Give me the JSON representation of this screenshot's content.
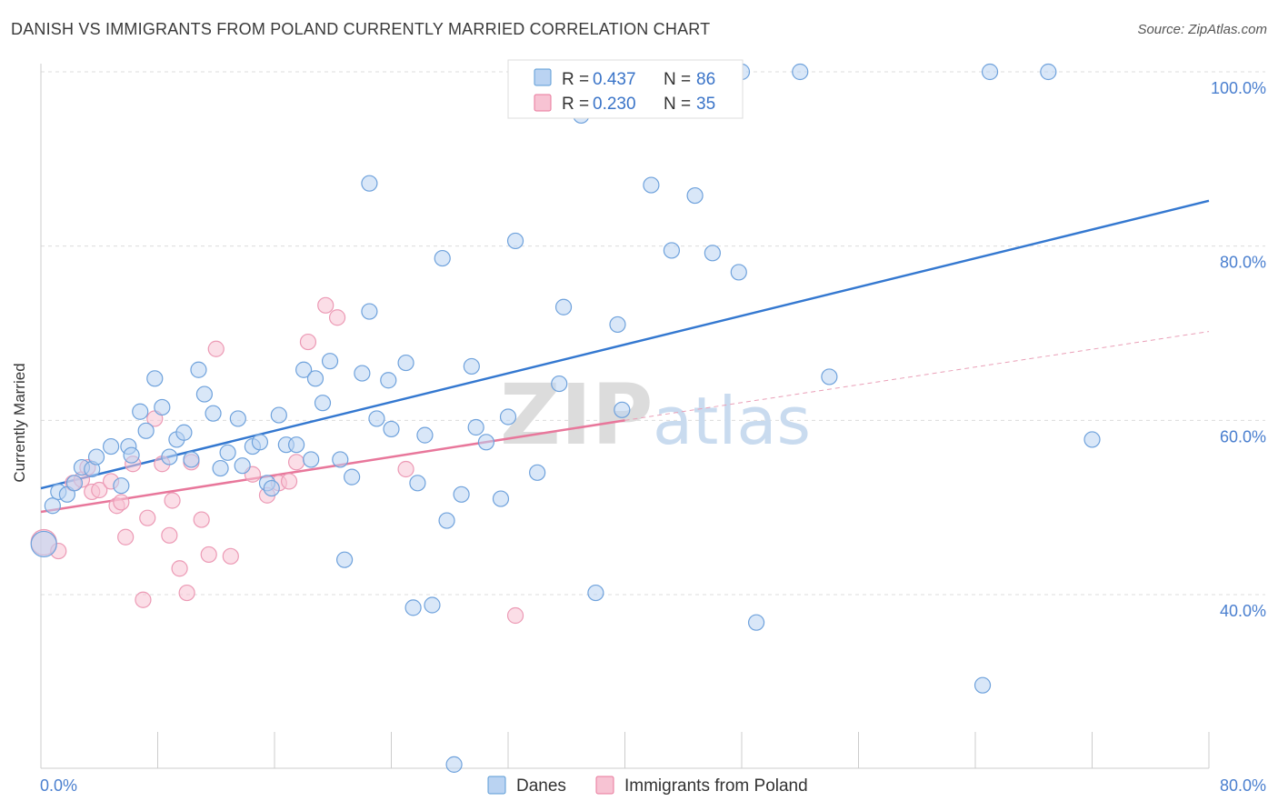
{
  "title": "DANISH VS IMMIGRANTS FROM POLAND CURRENTLY MARRIED CORRELATION CHART",
  "source": "Source: ZipAtlas.com",
  "watermark": {
    "zip": "ZIP",
    "atlas": "atlas"
  },
  "colors": {
    "danes": "#5b9bd5",
    "danes_fill": "#bad3f2",
    "poland": "#e8779b",
    "poland_fill": "#f7c3d3",
    "tick_label": "#4a7fcf"
  },
  "legend_top": {
    "rows": [
      {
        "r_label": "R = ",
        "r_value": "0.437",
        "n_label": "N = ",
        "n_value": "86"
      },
      {
        "r_label": "R = ",
        "r_value": "0.230",
        "n_label": "N = ",
        "n_value": "35"
      }
    ]
  },
  "legend_bottom": [
    "Danes",
    "Immigrants from Poland"
  ],
  "chart_data": {
    "type": "scatter",
    "title": "DANISH VS IMMIGRANTS FROM POLAND CURRENTLY MARRIED CORRELATION CHART",
    "xlabel": "",
    "ylabel": "Currently Married",
    "xlim": [
      0,
      80
    ],
    "ylim": [
      20,
      104
    ],
    "x_tick_labels": [
      "0.0%",
      "80.0%"
    ],
    "y_tick_labels": [
      "100.0%",
      "80.0%",
      "60.0%",
      "40.0%"
    ],
    "y_ticks": [
      100,
      80,
      60,
      40
    ],
    "grid": true,
    "legend": "top-center",
    "series": [
      {
        "name": "Danes",
        "r": 0.437,
        "n": 86,
        "trend": {
          "x0": 0,
          "y0": 52.2,
          "x1": 80,
          "y1": 85.2
        },
        "points": [
          [
            0.2,
            45.8
          ],
          [
            0.8,
            50.2
          ],
          [
            1.2,
            51.8
          ],
          [
            1.8,
            51.5
          ],
          [
            2.3,
            52.8
          ],
          [
            2.8,
            54.6
          ],
          [
            3.5,
            54.4
          ],
          [
            3.8,
            55.8
          ],
          [
            4.8,
            57.0
          ],
          [
            5.5,
            52.5
          ],
          [
            6.0,
            57.0
          ],
          [
            6.2,
            56.0
          ],
          [
            6.8,
            61.0
          ],
          [
            7.2,
            58.8
          ],
          [
            7.8,
            64.8
          ],
          [
            8.3,
            61.5
          ],
          [
            8.8,
            55.8
          ],
          [
            9.3,
            57.8
          ],
          [
            9.8,
            58.6
          ],
          [
            10.3,
            55.5
          ],
          [
            10.8,
            65.8
          ],
          [
            11.2,
            63.0
          ],
          [
            11.8,
            60.8
          ],
          [
            12.3,
            54.5
          ],
          [
            12.8,
            56.3
          ],
          [
            13.5,
            60.2
          ],
          [
            13.8,
            54.8
          ],
          [
            14.5,
            57.0
          ],
          [
            15.0,
            57.5
          ],
          [
            15.5,
            52.8
          ],
          [
            15.8,
            52.2
          ],
          [
            16.3,
            60.6
          ],
          [
            16.8,
            57.2
          ],
          [
            17.5,
            57.2
          ],
          [
            18.0,
            65.8
          ],
          [
            18.5,
            55.5
          ],
          [
            18.8,
            64.8
          ],
          [
            19.3,
            62.0
          ],
          [
            19.8,
            66.8
          ],
          [
            20.5,
            55.5
          ],
          [
            20.8,
            44.0
          ],
          [
            21.3,
            53.5
          ],
          [
            22.0,
            65.4
          ],
          [
            22.5,
            72.5
          ],
          [
            22.5,
            87.2
          ],
          [
            23.0,
            60.2
          ],
          [
            23.8,
            64.6
          ],
          [
            24.0,
            59.0
          ],
          [
            25.0,
            66.6
          ],
          [
            25.5,
            38.5
          ],
          [
            25.8,
            52.8
          ],
          [
            26.3,
            58.3
          ],
          [
            26.8,
            38.8
          ],
          [
            27.5,
            78.6
          ],
          [
            27.8,
            48.5
          ],
          [
            28.3,
            20.5
          ],
          [
            28.8,
            51.5
          ],
          [
            29.5,
            66.2
          ],
          [
            29.8,
            59.2
          ],
          [
            30.5,
            57.5
          ],
          [
            31.5,
            51.0
          ],
          [
            32.0,
            60.4
          ],
          [
            32.5,
            80.6
          ],
          [
            34.0,
            54.0
          ],
          [
            35.5,
            64.2
          ],
          [
            35.8,
            73.0
          ],
          [
            37.0,
            95.0
          ],
          [
            38.0,
            40.2
          ],
          [
            39.5,
            71.0
          ],
          [
            39.8,
            61.2
          ],
          [
            41.0,
            100.0
          ],
          [
            41.8,
            87.0
          ],
          [
            43.2,
            79.5
          ],
          [
            44.8,
            85.8
          ],
          [
            46.0,
            79.2
          ],
          [
            47.8,
            77.0
          ],
          [
            48.0,
            100.0
          ],
          [
            49.0,
            36.8
          ],
          [
            52.0,
            100.0
          ],
          [
            54.0,
            65.0
          ],
          [
            64.5,
            29.6
          ],
          [
            65.0,
            100.0
          ],
          [
            69.0,
            100.0
          ],
          [
            72.0,
            57.8
          ],
          [
            44.5,
            100.0
          ],
          [
            38.5,
            100.0
          ]
        ]
      },
      {
        "name": "Immigrants from Poland",
        "r": 0.23,
        "n": 35,
        "trend": {
          "x0": 0,
          "y0": 49.5,
          "x1": 40,
          "y1": 60.0
        },
        "trend_ext": {
          "x0": 40,
          "y0": 60.0,
          "x1": 80,
          "y1": 70.2
        },
        "points": [
          [
            0.2,
            46.0
          ],
          [
            1.2,
            45.0
          ],
          [
            2.2,
            52.8
          ],
          [
            2.8,
            53.2
          ],
          [
            3.2,
            54.6
          ],
          [
            3.5,
            51.8
          ],
          [
            4.0,
            52.0
          ],
          [
            4.8,
            53.0
          ],
          [
            5.2,
            50.2
          ],
          [
            5.5,
            50.6
          ],
          [
            5.8,
            46.6
          ],
          [
            6.3,
            55.0
          ],
          [
            7.0,
            39.4
          ],
          [
            7.3,
            48.8
          ],
          [
            7.8,
            60.2
          ],
          [
            8.3,
            55.0
          ],
          [
            8.8,
            46.8
          ],
          [
            9.0,
            50.8
          ],
          [
            9.5,
            43.0
          ],
          [
            10.0,
            40.2
          ],
          [
            10.3,
            55.2
          ],
          [
            11.0,
            48.6
          ],
          [
            11.5,
            44.6
          ],
          [
            12.0,
            68.2
          ],
          [
            13.0,
            44.4
          ],
          [
            14.5,
            53.8
          ],
          [
            15.5,
            51.4
          ],
          [
            16.3,
            52.8
          ],
          [
            17.0,
            53.0
          ],
          [
            17.5,
            55.2
          ],
          [
            18.3,
            69.0
          ],
          [
            19.5,
            73.2
          ],
          [
            20.3,
            71.8
          ],
          [
            25.0,
            54.4
          ],
          [
            32.5,
            37.6
          ]
        ]
      }
    ]
  }
}
